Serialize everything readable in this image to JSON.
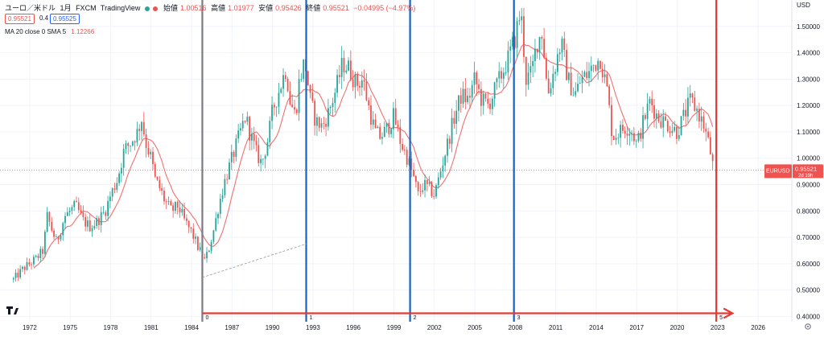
{
  "header": {
    "symbol": "ユーロ／米ドル",
    "interval": "1月",
    "exchange": "FXCM",
    "source": "TradingView",
    "open_label": "始値",
    "open": "1.00516",
    "high_label": "高値",
    "high": "1.01977",
    "low_label": "安値",
    "low": "0.95426",
    "close_label": "終値",
    "close": "0.95521",
    "change": "−0.04995 (−4.97%)",
    "bid": "0.95521",
    "spread": "0.4",
    "ask": "0.95525"
  },
  "indicator": {
    "label": "MA 20 close 0 SMA 5",
    "value": "1.12266"
  },
  "price_axis": {
    "currency": "USD",
    "ticks": [
      "1.50000",
      "1.40000",
      "1.30000",
      "1.20000",
      "1.10000",
      "1.00000",
      "0.90000",
      "0.80000",
      "0.70000",
      "0.60000",
      "0.50000",
      "0.40000"
    ]
  },
  "last_price_label": {
    "symbol": "EURUSD",
    "price": "0.95521",
    "countdown": "2d 19h"
  },
  "colors": {
    "up": "#26a69a",
    "down": "#ef5350",
    "ma": "#f07070",
    "blue_line": "#1565c0",
    "gray_line": "#787b86",
    "red_line": "#e53935"
  },
  "chart_data": {
    "type": "candlestick",
    "instrument": "EURUSD",
    "timeframe": "1M",
    "ylim": [
      0.38,
      1.6
    ],
    "xlim": [
      1969.8,
      2028.5
    ],
    "x_ticks": [
      1972,
      1975,
      1978,
      1981,
      1984,
      1987,
      1990,
      1993,
      1996,
      1999,
      2002,
      2005,
      2008,
      2011,
      2014,
      2017,
      2020,
      2023,
      2026
    ],
    "x_tick_labels": [
      "1972",
      "1975",
      "1978",
      "1981",
      "1984",
      "1987",
      "1990",
      "1993",
      "1996",
      "1999",
      "2002",
      "2005",
      "2008",
      "2011",
      "2014",
      "2017",
      "2020",
      "2023",
      "2026"
    ],
    "price_path": [
      [
        1970.8,
        0.54
      ],
      [
        1971.5,
        0.58
      ],
      [
        1972.0,
        0.6
      ],
      [
        1972.5,
        0.62
      ],
      [
        1973.0,
        0.65
      ],
      [
        1973.3,
        0.78
      ],
      [
        1973.7,
        0.72
      ],
      [
        1974.0,
        0.68
      ],
      [
        1974.6,
        0.78
      ],
      [
        1975.0,
        0.8
      ],
      [
        1975.4,
        0.82
      ],
      [
        1976.0,
        0.76
      ],
      [
        1976.5,
        0.74
      ],
      [
        1977.0,
        0.76
      ],
      [
        1977.6,
        0.8
      ],
      [
        1978.0,
        0.86
      ],
      [
        1978.5,
        0.92
      ],
      [
        1979.0,
        1.03
      ],
      [
        1979.5,
        1.06
      ],
      [
        1980.0,
        1.1
      ],
      [
        1980.3,
        1.15
      ],
      [
        1980.6,
        1.06
      ],
      [
        1981.0,
        1.0
      ],
      [
        1981.3,
        0.92
      ],
      [
        1981.7,
        0.88
      ],
      [
        1982.0,
        0.84
      ],
      [
        1982.5,
        0.8
      ],
      [
        1983.0,
        0.82
      ],
      [
        1983.5,
        0.76
      ],
      [
        1984.0,
        0.72
      ],
      [
        1984.5,
        0.66
      ],
      [
        1985.0,
        0.61
      ],
      [
        1985.3,
        0.66
      ],
      [
        1985.7,
        0.74
      ],
      [
        1986.0,
        0.82
      ],
      [
        1986.5,
        0.92
      ],
      [
        1987.0,
        1.0
      ],
      [
        1987.5,
        1.08
      ],
      [
        1988.0,
        1.16
      ],
      [
        1988.3,
        1.1
      ],
      [
        1988.8,
        1.02
      ],
      [
        1989.2,
        0.98
      ],
      [
        1989.7,
        1.08
      ],
      [
        1990.0,
        1.18
      ],
      [
        1990.5,
        1.26
      ],
      [
        1991.0,
        1.34
      ],
      [
        1991.3,
        1.22
      ],
      [
        1991.7,
        1.16
      ],
      [
        1992.0,
        1.3
      ],
      [
        1992.4,
        1.37
      ],
      [
        1992.8,
        1.22
      ],
      [
        1993.2,
        1.14
      ],
      [
        1993.7,
        1.12
      ],
      [
        1994.2,
        1.18
      ],
      [
        1994.7,
        1.26
      ],
      [
        1995.2,
        1.36
      ],
      [
        1995.7,
        1.34
      ],
      [
        1996.2,
        1.28
      ],
      [
        1996.7,
        1.3
      ],
      [
        1997.1,
        1.2
      ],
      [
        1997.6,
        1.1
      ],
      [
        1998.0,
        1.08
      ],
      [
        1998.6,
        1.12
      ],
      [
        1999.0,
        1.16
      ],
      [
        1999.5,
        1.06
      ],
      [
        2000.0,
        1.0
      ],
      [
        2000.5,
        0.92
      ],
      [
        2000.8,
        0.86
      ],
      [
        2001.2,
        0.9
      ],
      [
        2001.7,
        0.88
      ],
      [
        2002.0,
        0.86
      ],
      [
        2002.5,
        0.96
      ],
      [
        2003.0,
        1.06
      ],
      [
        2003.5,
        1.16
      ],
      [
        2004.0,
        1.24
      ],
      [
        2004.5,
        1.22
      ],
      [
        2005.0,
        1.3
      ],
      [
        2005.5,
        1.22
      ],
      [
        2006.0,
        1.2
      ],
      [
        2006.5,
        1.26
      ],
      [
        2007.0,
        1.32
      ],
      [
        2007.5,
        1.38
      ],
      [
        2008.0,
        1.46
      ],
      [
        2008.4,
        1.56
      ],
      [
        2008.8,
        1.3
      ],
      [
        2009.2,
        1.32
      ],
      [
        2009.6,
        1.44
      ],
      [
        2010.0,
        1.48
      ],
      [
        2010.4,
        1.24
      ],
      [
        2010.9,
        1.34
      ],
      [
        2011.4,
        1.44
      ],
      [
        2011.9,
        1.3
      ],
      [
        2012.4,
        1.24
      ],
      [
        2012.9,
        1.3
      ],
      [
        2013.4,
        1.32
      ],
      [
        2013.9,
        1.36
      ],
      [
        2014.3,
        1.38
      ],
      [
        2014.8,
        1.26
      ],
      [
        2015.2,
        1.08
      ],
      [
        2015.7,
        1.1
      ],
      [
        2016.2,
        1.12
      ],
      [
        2016.7,
        1.1
      ],
      [
        2017.0,
        1.05
      ],
      [
        2017.5,
        1.14
      ],
      [
        2018.0,
        1.22
      ],
      [
        2018.5,
        1.16
      ],
      [
        2019.0,
        1.14
      ],
      [
        2019.5,
        1.12
      ],
      [
        2020.0,
        1.1
      ],
      [
        2020.5,
        1.16
      ],
      [
        2021.0,
        1.22
      ],
      [
        2021.5,
        1.18
      ],
      [
        2022.0,
        1.12
      ],
      [
        2022.4,
        1.04
      ],
      [
        2022.7,
        0.955
      ]
    ],
    "ma_label": "MA 20 close 0 SMA 5",
    "last_price": 0.95521,
    "vertical_lines": [
      {
        "x": 1984.8,
        "color": "gray",
        "label": "0"
      },
      {
        "x": 1992.5,
        "color": "blue",
        "label": "1"
      },
      {
        "x": 2000.2,
        "color": "blue",
        "label": "2"
      },
      {
        "x": 2007.9,
        "color": "blue",
        "label": "3"
      },
      {
        "x": 2022.9,
        "color": "red",
        "label": "5"
      }
    ],
    "arrow": {
      "from_x": 1984.8,
      "to_x": 2024.1,
      "y": 0.412
    },
    "dashed_trend": {
      "from": [
        1984.8,
        0.548
      ],
      "to": [
        1992.5,
        0.675
      ]
    },
    "grid": true,
    "legend_position": "top-left"
  }
}
